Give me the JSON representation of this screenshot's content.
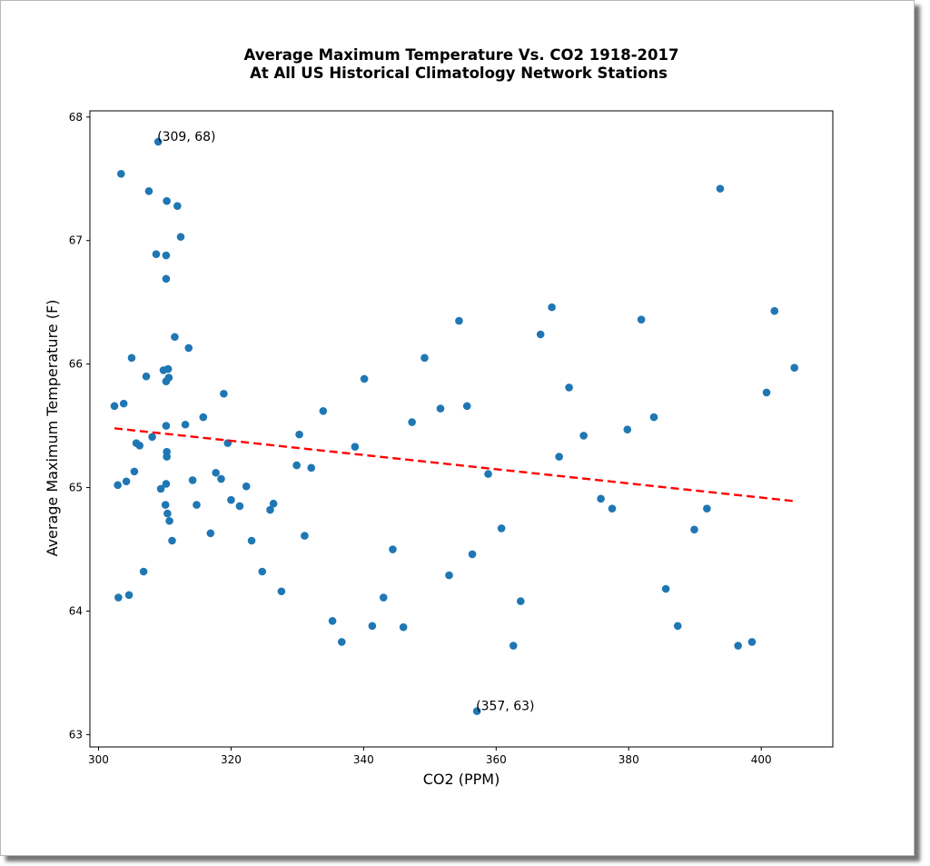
{
  "chart_data": {
    "type": "scatter",
    "title": "Average Maximum Temperature Vs. CO2 1918-2017",
    "subtitle": "At All US Historical Climatology Network Stations",
    "xlabel": "CO2 (PPM)",
    "ylabel": "Average Maximum Temperature (F)",
    "xlim": [
      298.7,
      410.8
    ],
    "ylim": [
      62.9,
      68.05
    ],
    "xticks": [
      300,
      320,
      340,
      360,
      380,
      400
    ],
    "yticks": [
      63,
      64,
      65,
      66,
      67,
      68
    ],
    "grid": false,
    "marker_color": "#1f77b4",
    "trend_color": "#ff0000",
    "points": [
      [
        309.0,
        67.8
      ],
      [
        303.4,
        67.54
      ],
      [
        307.6,
        67.4
      ],
      [
        310.3,
        67.32
      ],
      [
        311.9,
        67.28
      ],
      [
        312.4,
        67.03
      ],
      [
        308.7,
        66.89
      ],
      [
        310.2,
        66.88
      ],
      [
        310.2,
        66.69
      ],
      [
        311.5,
        66.22
      ],
      [
        313.6,
        66.13
      ],
      [
        305.0,
        66.05
      ],
      [
        307.2,
        65.9
      ],
      [
        310.6,
        65.89
      ],
      [
        310.5,
        65.96
      ],
      [
        309.8,
        65.95
      ],
      [
        310.2,
        65.86
      ],
      [
        318.9,
        65.76
      ],
      [
        303.8,
        65.68
      ],
      [
        302.4,
        65.66
      ],
      [
        315.8,
        65.57
      ],
      [
        313.1,
        65.51
      ],
      [
        310.2,
        65.5
      ],
      [
        308.1,
        65.41
      ],
      [
        305.7,
        65.36
      ],
      [
        306.2,
        65.34
      ],
      [
        319.5,
        65.36
      ],
      [
        310.3,
        65.29
      ],
      [
        310.3,
        65.25
      ],
      [
        317.7,
        65.12
      ],
      [
        318.5,
        65.07
      ],
      [
        305.4,
        65.13
      ],
      [
        304.2,
        65.05
      ],
      [
        302.9,
        65.02
      ],
      [
        314.2,
        65.06
      ],
      [
        310.2,
        65.03
      ],
      [
        309.4,
        64.99
      ],
      [
        322.3,
        65.01
      ],
      [
        320.0,
        64.9
      ],
      [
        310.1,
        64.86
      ],
      [
        314.8,
        64.86
      ],
      [
        321.3,
        64.85
      ],
      [
        326.4,
        64.87
      ],
      [
        325.9,
        64.82
      ],
      [
        310.4,
        64.79
      ],
      [
        310.7,
        64.73
      ],
      [
        316.9,
        64.63
      ],
      [
        311.1,
        64.57
      ],
      [
        323.1,
        64.57
      ],
      [
        306.8,
        64.32
      ],
      [
        324.7,
        64.32
      ],
      [
        327.6,
        64.16
      ],
      [
        304.6,
        64.13
      ],
      [
        303.0,
        64.11
      ],
      [
        329.9,
        65.18
      ],
      [
        330.3,
        65.43
      ],
      [
        331.1,
        64.61
      ],
      [
        332.1,
        65.16
      ],
      [
        333.9,
        65.62
      ],
      [
        335.3,
        63.92
      ],
      [
        336.7,
        63.75
      ],
      [
        338.7,
        65.33
      ],
      [
        340.1,
        65.88
      ],
      [
        341.3,
        63.88
      ],
      [
        343.0,
        64.11
      ],
      [
        344.4,
        64.5
      ],
      [
        346.0,
        63.87
      ],
      [
        347.3,
        65.53
      ],
      [
        349.2,
        66.05
      ],
      [
        351.6,
        65.64
      ],
      [
        352.9,
        64.29
      ],
      [
        354.4,
        66.35
      ],
      [
        355.6,
        65.66
      ],
      [
        356.4,
        64.46
      ],
      [
        357.1,
        63.19
      ],
      [
        358.8,
        65.11
      ],
      [
        360.8,
        64.67
      ],
      [
        362.6,
        63.72
      ],
      [
        363.7,
        64.08
      ],
      [
        366.7,
        66.24
      ],
      [
        368.4,
        66.46
      ],
      [
        369.5,
        65.25
      ],
      [
        371.0,
        65.81
      ],
      [
        373.2,
        65.42
      ],
      [
        375.8,
        64.91
      ],
      [
        377.5,
        64.83
      ],
      [
        379.8,
        65.47
      ],
      [
        381.9,
        66.36
      ],
      [
        383.8,
        65.57
      ],
      [
        385.6,
        64.18
      ],
      [
        387.4,
        63.88
      ],
      [
        389.9,
        64.66
      ],
      [
        391.8,
        64.83
      ],
      [
        393.8,
        67.42
      ],
      [
        396.5,
        63.72
      ],
      [
        398.6,
        63.75
      ],
      [
        400.8,
        65.77
      ],
      [
        402.0,
        66.43
      ],
      [
        405.0,
        65.97
      ]
    ],
    "trendline": {
      "x": [
        302.4,
        405.0
      ],
      "y": [
        65.48,
        64.89
      ]
    },
    "annotations": [
      {
        "text": "(309, 68)",
        "x": 309.0,
        "y": 67.8
      },
      {
        "text": "(357, 63)",
        "x": 357.1,
        "y": 63.19
      }
    ]
  }
}
